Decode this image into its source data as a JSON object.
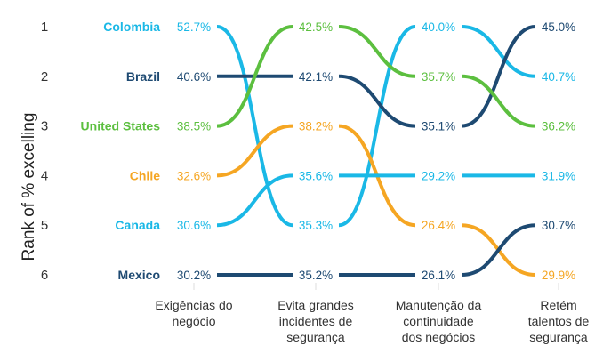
{
  "chart_data": {
    "type": "bump",
    "ylabel": "Rank of % excelling",
    "ranks": [
      "1",
      "2",
      "3",
      "4",
      "5",
      "6"
    ],
    "categories": [
      [
        "Exigências do",
        "negócio"
      ],
      [
        "Evita grandes",
        "incidentes de",
        "segurança"
      ],
      [
        "Manutenção da",
        "continuidade",
        "dos negócios"
      ],
      [
        "Retém",
        "talentos de",
        "segurança"
      ]
    ],
    "series": [
      {
        "name": "Colombia",
        "color": "#1ab8e6",
        "ranks": [
          1,
          5,
          1,
          2
        ],
        "labels": [
          "52.7%",
          "35.3%",
          "40.0%",
          "40.7%"
        ]
      },
      {
        "name": "Brazil",
        "color": "#1e4a72",
        "ranks": [
          2,
          2,
          3,
          1
        ],
        "labels": [
          "40.6%",
          "42.1%",
          "35.1%",
          "45.0%"
        ]
      },
      {
        "name": "United States",
        "color": "#5cbf3f",
        "ranks": [
          3,
          1,
          2,
          3
        ],
        "labels": [
          "38.5%",
          "42.5%",
          "35.7%",
          "36.2%"
        ]
      },
      {
        "name": "Chile",
        "color": "#f5a623",
        "ranks": [
          4,
          3,
          5,
          6
        ],
        "labels": [
          "32.6%",
          "38.2%",
          "26.4%",
          "29.9%"
        ]
      },
      {
        "name": "Canada",
        "color": "#1ab8e6",
        "ranks": [
          5,
          4,
          4,
          4
        ],
        "labels": [
          "30.6%",
          "35.6%",
          "29.2%",
          "31.9%"
        ]
      },
      {
        "name": "Mexico",
        "color": "#1e4a72",
        "ranks": [
          6,
          6,
          6,
          5
        ],
        "labels": [
          "30.2%",
          "35.2%",
          "26.1%",
          "30.7%"
        ]
      }
    ]
  }
}
